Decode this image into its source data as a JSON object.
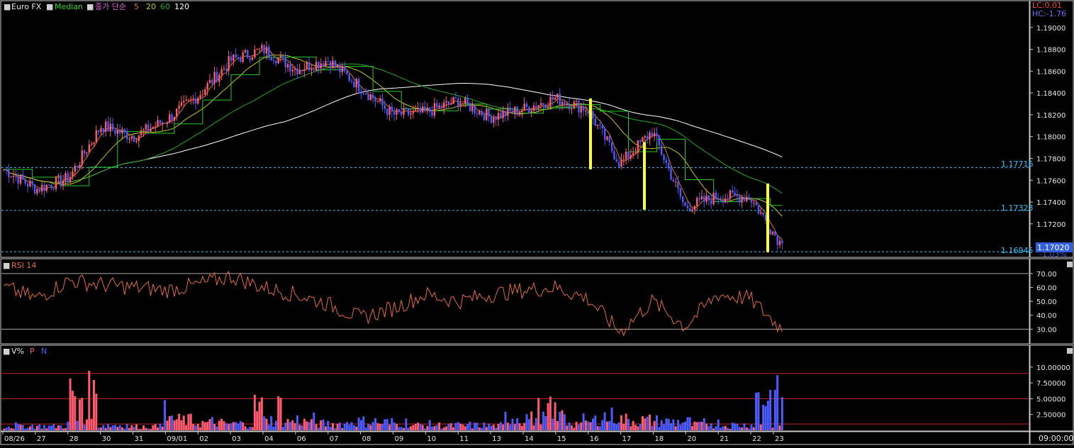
{
  "header": {
    "symbol": "Euro FX",
    "median_label": "Median",
    "ma_label": "종가 단순",
    "ma_periods": [
      "5",
      "20",
      "60",
      "120"
    ],
    "lc": "LC:0.01",
    "hc": "HC:-1.76"
  },
  "price_panel": {
    "y_ticks": [
      "1.19000",
      "1.18800",
      "1.18600",
      "1.18400",
      "1.18200",
      "1.18000",
      "1.17800",
      "1.17600",
      "1.17400",
      "1.17200"
    ],
    "hlines": [
      {
        "label": "1.17716",
        "value": 1.17716
      },
      {
        "label": "1.17323",
        "value": 1.17323
      },
      {
        "label": "1.16945",
        "value": 1.16945
      }
    ],
    "last_price": "1.17020",
    "change_text": "-1.03%"
  },
  "rsi_panel": {
    "title": "RSI 14",
    "y_ticks": [
      "70.00",
      "60.00",
      "50.00",
      "40.00",
      "30.00"
    ],
    "upper": 70,
    "lower": 30
  },
  "vol_panel": {
    "title": "V%",
    "p_label": "P",
    "n_label": "N",
    "y_ticks": [
      "10.00000",
      "7.50000",
      "5.00000",
      "2.50000"
    ]
  },
  "time_axis": {
    "labels": [
      "08/26",
      "27",
      "28",
      "30",
      "31",
      "09/01",
      "02",
      "03",
      "04",
      "06",
      "07",
      "08",
      "09",
      "10",
      "11",
      "13",
      "14",
      "15",
      "16",
      "17",
      "18",
      "20",
      "21",
      "22",
      "23"
    ],
    "right_label": "09:00:00"
  },
  "colors": {
    "bull": "#ff5a6e",
    "bear": "#4a5cff",
    "median": "#22cc22",
    "ma5": "#e07030",
    "ma20": "#c8c800",
    "ma60": "#22aa22",
    "ma120": "#ffffff",
    "guide": "#33c8ff",
    "rsi": "#e86a3a",
    "marker": "#ffff20"
  },
  "chart_data": [
    {
      "type": "candlestick",
      "title": "Euro FX",
      "ylim": [
        1.169,
        1.192
      ],
      "x": [
        "08/26",
        "27",
        "28",
        "30",
        "31",
        "09/01",
        "02",
        "03",
        "04",
        "06",
        "07",
        "08",
        "09",
        "10",
        "11",
        "13",
        "14",
        "15",
        "16",
        "17",
        "18",
        "20",
        "21",
        "22",
        "23"
      ],
      "anchor_prices": [
        1.177,
        1.1752,
        1.1762,
        1.181,
        1.18,
        1.1815,
        1.1838,
        1.187,
        1.188,
        1.1862,
        1.187,
        1.1845,
        1.182,
        1.1822,
        1.1833,
        1.1818,
        1.1825,
        1.1835,
        1.1825,
        1.1775,
        1.1805,
        1.1735,
        1.1745,
        1.1745,
        1.17
      ],
      "last": 1.1702,
      "series_lines": [
        "Median",
        "MA 5",
        "MA 20",
        "MA 60",
        "MA 120"
      ]
    },
    {
      "type": "line",
      "title": "RSI 14",
      "ylim": [
        20,
        75
      ],
      "x": [
        "08/26",
        "27",
        "28",
        "30",
        "31",
        "09/01",
        "02",
        "03",
        "04",
        "06",
        "07",
        "08",
        "09",
        "10",
        "11",
        "13",
        "14",
        "15",
        "16",
        "17",
        "18",
        "20",
        "21",
        "22",
        "23"
      ],
      "values": [
        60,
        52,
        65,
        62,
        60,
        58,
        62,
        68,
        60,
        55,
        48,
        38,
        45,
        55,
        50,
        55,
        58,
        60,
        52,
        28,
        50,
        32,
        55,
        52,
        30
      ]
    },
    {
      "type": "bar",
      "title": "V%",
      "ylim": [
        0,
        12
      ],
      "x": [
        "08/26",
        "27",
        "28",
        "30",
        "31",
        "09/01",
        "02",
        "03",
        "04",
        "06",
        "07",
        "08",
        "09",
        "10",
        "11",
        "13",
        "14",
        "15",
        "16",
        "17",
        "18",
        "20",
        "21",
        "22",
        "23"
      ],
      "series": [
        {
          "name": "P",
          "values": [
            1.0,
            1.3,
            10.5,
            1.4,
            1.1,
            3.0,
            2.2,
            1.8,
            7.0,
            2.5,
            1.9,
            2.8,
            1.7,
            1.5,
            1.3,
            1.2,
            3.5,
            6.0,
            2.0,
            3.2,
            3.0,
            2.2,
            1.6,
            1.4,
            2.0
          ]
        },
        {
          "name": "N",
          "values": [
            1.5,
            1.2,
            2.0,
            1.6,
            1.3,
            5.5,
            2.6,
            2.0,
            3.0,
            3.2,
            2.0,
            2.6,
            2.4,
            1.8,
            1.6,
            1.5,
            4.0,
            3.5,
            3.0,
            4.2,
            2.8,
            2.6,
            2.2,
            1.6,
            9.8
          ]
        }
      ],
      "hlines": [
        9.0,
        5.0,
        1.0
      ]
    }
  ]
}
